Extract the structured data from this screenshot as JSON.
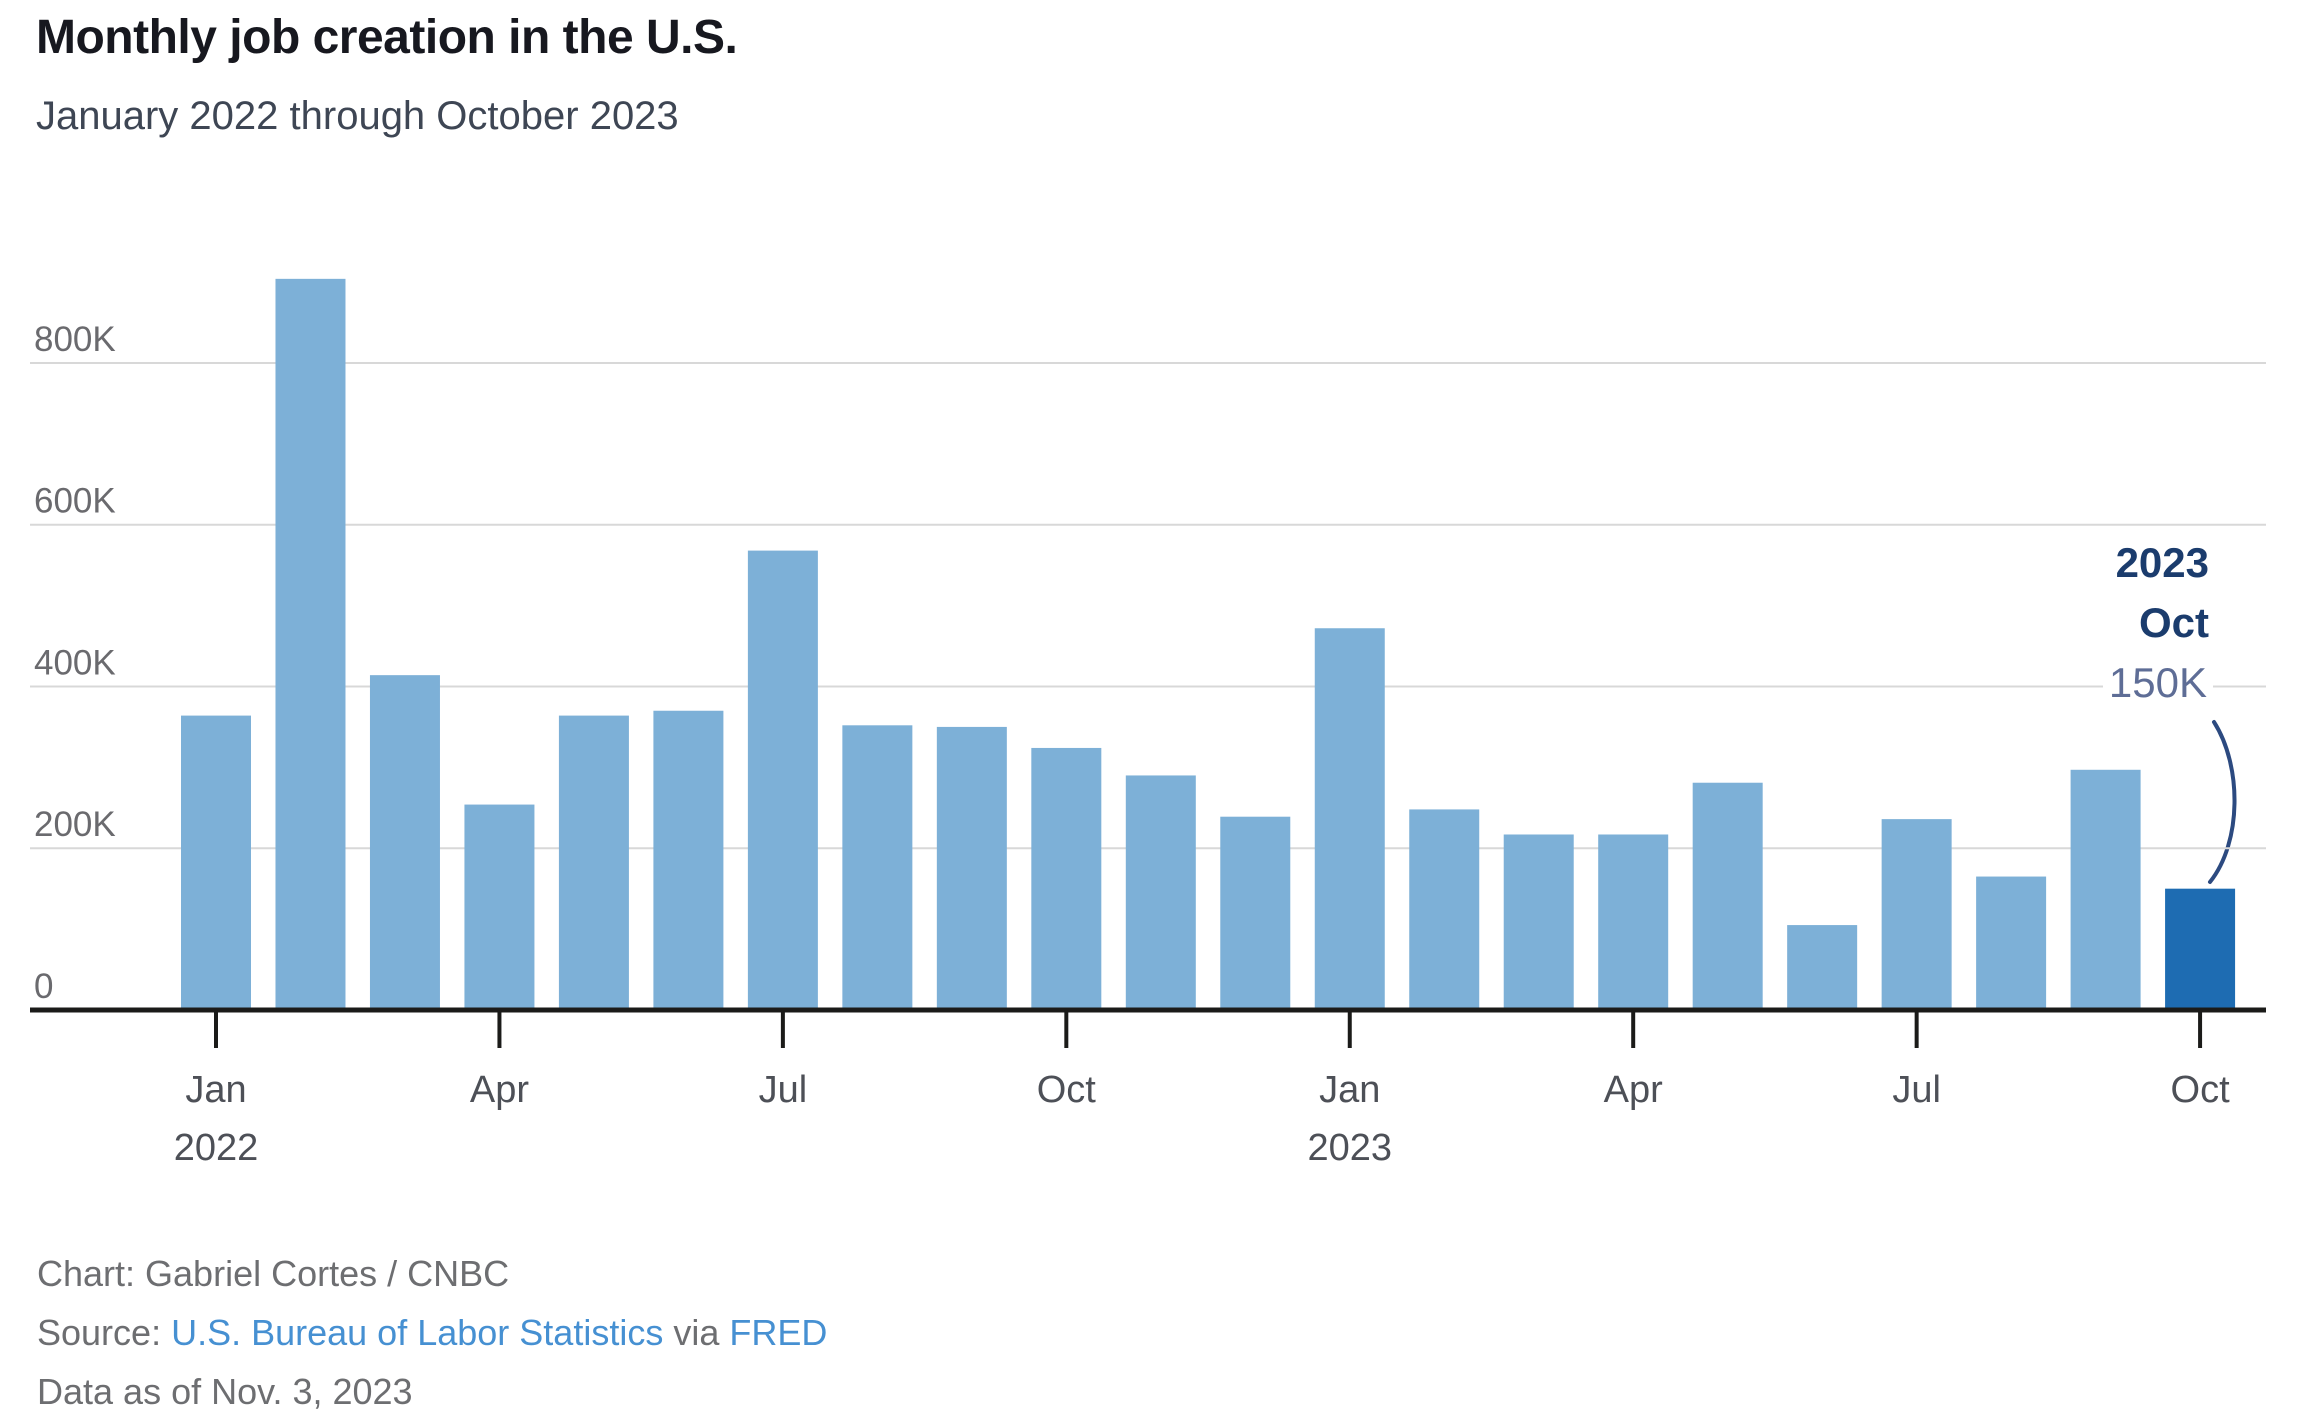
{
  "chart_data": {
    "type": "bar",
    "title": "Monthly job creation in the U.S.",
    "subtitle": "January 2022 through October 2023",
    "unit": "jobs (thousands)",
    "categories": [
      "Jan 2022",
      "Feb 2022",
      "Mar 2022",
      "Apr 2022",
      "May 2022",
      "Jun 2022",
      "Jul 2022",
      "Aug 2022",
      "Sep 2022",
      "Oct 2022",
      "Nov 2022",
      "Dec 2022",
      "Jan 2023",
      "Feb 2023",
      "Mar 2023",
      "Apr 2023",
      "May 2023",
      "Jun 2023",
      "Jul 2023",
      "Aug 2023",
      "Sep 2023",
      "Oct 2023"
    ],
    "values_thousands": [
      364,
      904,
      414,
      254,
      364,
      370,
      568,
      352,
      350,
      324,
      290,
      239,
      472,
      248,
      217,
      217,
      281,
      105,
      236,
      165,
      297,
      150
    ],
    "ylim": [
      0,
      900
    ],
    "grid": true,
    "legend": false,
    "yticks": [
      {
        "value": 0,
        "label": "0"
      },
      {
        "value": 200,
        "label": "200K"
      },
      {
        "value": 400,
        "label": "400K"
      },
      {
        "value": 600,
        "label": "600K"
      },
      {
        "value": 800,
        "label": "800K"
      }
    ],
    "xticks": [
      {
        "index": 0,
        "label": "Jan",
        "year": "2022"
      },
      {
        "index": 3,
        "label": "Apr"
      },
      {
        "index": 6,
        "label": "Jul"
      },
      {
        "index": 9,
        "label": "Oct"
      },
      {
        "index": 12,
        "label": "Jan",
        "year": "2023"
      },
      {
        "index": 15,
        "label": "Apr"
      },
      {
        "index": 18,
        "label": "Jul"
      },
      {
        "index": 21,
        "label": "Oct"
      }
    ],
    "bar_color": "#7db0d7",
    "highlight_color": "#1e6cb2",
    "highlight_index": 21,
    "annotation": {
      "year": "2023",
      "month": "Oct",
      "value_label": "150K"
    },
    "colors": {
      "gridline": "#d8d8d8",
      "axis": "#1b1b19",
      "y_label": "#6a6a6e",
      "x_label": "#4d5057",
      "callout_arc": "#2c4a80"
    }
  },
  "footer": {
    "credit": "Chart: Gabriel Cortes / CNBC",
    "source_prefix": "Source: ",
    "source_link_1": "U.S. Bureau of Labor Statistics",
    "source_middle": " via ",
    "source_link_2": "FRED",
    "data_as_of": "Data as of Nov. 3, 2023"
  }
}
